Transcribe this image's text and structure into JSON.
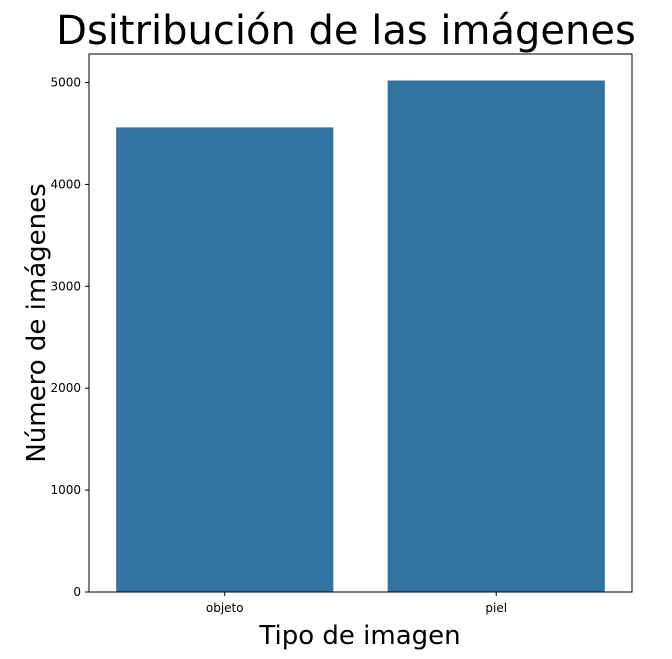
{
  "chart_data": {
    "type": "bar",
    "title": "Dsitribución de las imágenes",
    "xlabel": "Tipo de imagen",
    "ylabel": "Número de imágenes",
    "categories": [
      "objeto",
      "piel"
    ],
    "values": [
      4560,
      5020
    ],
    "ylim": [
      0,
      5280
    ],
    "yticks": [
      0,
      1000,
      2000,
      3000,
      4000,
      5000
    ],
    "bar_color": "#3274a1",
    "grid": false
  }
}
